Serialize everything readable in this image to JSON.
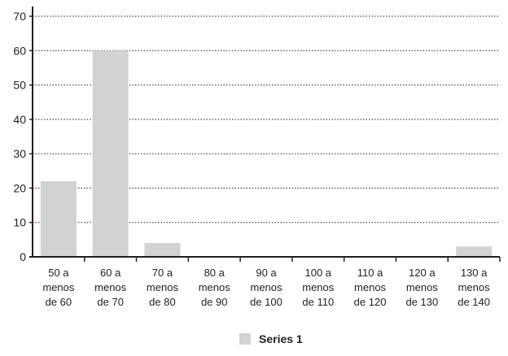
{
  "chart_data": {
    "type": "bar",
    "categories": [
      [
        "50 a",
        "menos",
        "de 60"
      ],
      [
        "60 a",
        "menos",
        "de 70"
      ],
      [
        "70 a",
        "menos",
        "de 80"
      ],
      [
        "80 a",
        "menos",
        "de 90"
      ],
      [
        "90 a",
        "menos",
        "de 100"
      ],
      [
        "100 a",
        "menos",
        "de 110"
      ],
      [
        "110 a",
        "menos",
        "de 120"
      ],
      [
        "120 a",
        "menos",
        "de 130"
      ],
      [
        "130 a",
        "menos",
        "de 140"
      ]
    ],
    "series": [
      {
        "name": "Series 1",
        "values": [
          22,
          60,
          4,
          0,
          0,
          0,
          0,
          0,
          3
        ],
        "color": "#d1d2d4"
      }
    ],
    "y_ticks": [
      "0",
      "10",
      "20",
      "30",
      "40",
      "50",
      "60",
      "70"
    ],
    "ylim": [
      0,
      70
    ],
    "grid": true,
    "grid_style": "dotted",
    "legend_position": "bottom-center",
    "colors": {
      "axis": "#231f20",
      "grid": "#231f20",
      "bar": "#d1d2d4"
    }
  }
}
